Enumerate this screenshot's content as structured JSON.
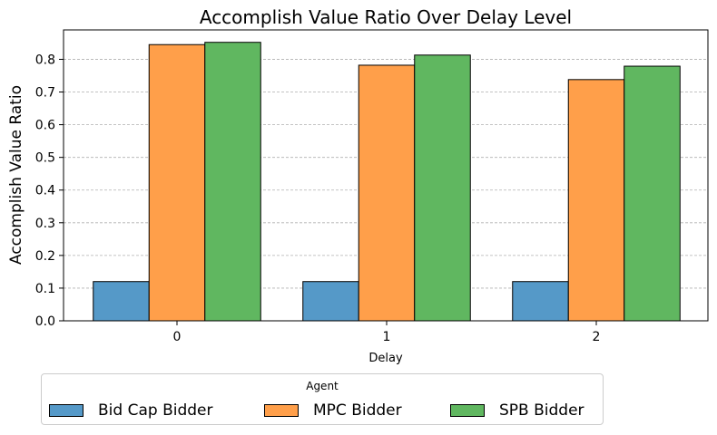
{
  "chart_data": {
    "type": "bar",
    "title": "Accomplish Value Ratio Over Delay Level",
    "xlabel": "Delay",
    "ylabel": "Accomplish Value Ratio",
    "categories": [
      "0",
      "1",
      "2"
    ],
    "ylim": [
      0,
      0.89
    ],
    "yticks": [
      "0.0",
      "0.1",
      "0.2",
      "0.3",
      "0.4",
      "0.5",
      "0.6",
      "0.7",
      "0.8"
    ],
    "grid": "y-dashed",
    "legend": {
      "title": "Agent",
      "placement": "bottom-left",
      "columns": 3
    },
    "series": [
      {
        "name": "Bid Cap Bidder",
        "color": "#5599c8",
        "values": [
          0.12,
          0.12,
          0.12
        ]
      },
      {
        "name": "MPC Bidder",
        "color": "#ff9f4a",
        "values": [
          0.845,
          0.782,
          0.738
        ]
      },
      {
        "name": "SPB Bidder",
        "color": "#60b760",
        "values": [
          0.852,
          0.813,
          0.779
        ]
      }
    ]
  }
}
